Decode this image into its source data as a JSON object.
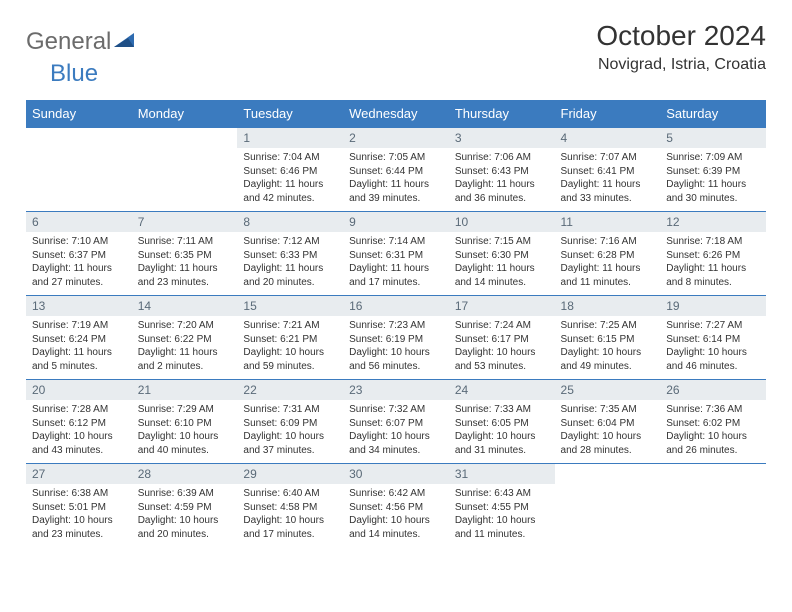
{
  "logo": {
    "word1": "General",
    "word2": "Blue"
  },
  "header": {
    "title": "October 2024",
    "subtitle": "Novigrad, Istria, Croatia"
  },
  "colors": {
    "header_bg": "#3b7bbf",
    "header_text": "#ffffff",
    "daynum_bg": "#e8ecef",
    "daynum_text": "#5a6a78",
    "body_text": "#333333",
    "rule": "#3b7bbf",
    "logo_gray": "#6b6b6b",
    "logo_blue": "#3b7bbf"
  },
  "columns": [
    "Sunday",
    "Monday",
    "Tuesday",
    "Wednesday",
    "Thursday",
    "Friday",
    "Saturday"
  ],
  "weeks": [
    [
      null,
      null,
      {
        "n": "1",
        "sr": "Sunrise: 7:04 AM",
        "ss": "Sunset: 6:46 PM",
        "dl1": "Daylight: 11 hours",
        "dl2": "and 42 minutes."
      },
      {
        "n": "2",
        "sr": "Sunrise: 7:05 AM",
        "ss": "Sunset: 6:44 PM",
        "dl1": "Daylight: 11 hours",
        "dl2": "and 39 minutes."
      },
      {
        "n": "3",
        "sr": "Sunrise: 7:06 AM",
        "ss": "Sunset: 6:43 PM",
        "dl1": "Daylight: 11 hours",
        "dl2": "and 36 minutes."
      },
      {
        "n": "4",
        "sr": "Sunrise: 7:07 AM",
        "ss": "Sunset: 6:41 PM",
        "dl1": "Daylight: 11 hours",
        "dl2": "and 33 minutes."
      },
      {
        "n": "5",
        "sr": "Sunrise: 7:09 AM",
        "ss": "Sunset: 6:39 PM",
        "dl1": "Daylight: 11 hours",
        "dl2": "and 30 minutes."
      }
    ],
    [
      {
        "n": "6",
        "sr": "Sunrise: 7:10 AM",
        "ss": "Sunset: 6:37 PM",
        "dl1": "Daylight: 11 hours",
        "dl2": "and 27 minutes."
      },
      {
        "n": "7",
        "sr": "Sunrise: 7:11 AM",
        "ss": "Sunset: 6:35 PM",
        "dl1": "Daylight: 11 hours",
        "dl2": "and 23 minutes."
      },
      {
        "n": "8",
        "sr": "Sunrise: 7:12 AM",
        "ss": "Sunset: 6:33 PM",
        "dl1": "Daylight: 11 hours",
        "dl2": "and 20 minutes."
      },
      {
        "n": "9",
        "sr": "Sunrise: 7:14 AM",
        "ss": "Sunset: 6:31 PM",
        "dl1": "Daylight: 11 hours",
        "dl2": "and 17 minutes."
      },
      {
        "n": "10",
        "sr": "Sunrise: 7:15 AM",
        "ss": "Sunset: 6:30 PM",
        "dl1": "Daylight: 11 hours",
        "dl2": "and 14 minutes."
      },
      {
        "n": "11",
        "sr": "Sunrise: 7:16 AM",
        "ss": "Sunset: 6:28 PM",
        "dl1": "Daylight: 11 hours",
        "dl2": "and 11 minutes."
      },
      {
        "n": "12",
        "sr": "Sunrise: 7:18 AM",
        "ss": "Sunset: 6:26 PM",
        "dl1": "Daylight: 11 hours",
        "dl2": "and 8 minutes."
      }
    ],
    [
      {
        "n": "13",
        "sr": "Sunrise: 7:19 AM",
        "ss": "Sunset: 6:24 PM",
        "dl1": "Daylight: 11 hours",
        "dl2": "and 5 minutes."
      },
      {
        "n": "14",
        "sr": "Sunrise: 7:20 AM",
        "ss": "Sunset: 6:22 PM",
        "dl1": "Daylight: 11 hours",
        "dl2": "and 2 minutes."
      },
      {
        "n": "15",
        "sr": "Sunrise: 7:21 AM",
        "ss": "Sunset: 6:21 PM",
        "dl1": "Daylight: 10 hours",
        "dl2": "and 59 minutes."
      },
      {
        "n": "16",
        "sr": "Sunrise: 7:23 AM",
        "ss": "Sunset: 6:19 PM",
        "dl1": "Daylight: 10 hours",
        "dl2": "and 56 minutes."
      },
      {
        "n": "17",
        "sr": "Sunrise: 7:24 AM",
        "ss": "Sunset: 6:17 PM",
        "dl1": "Daylight: 10 hours",
        "dl2": "and 53 minutes."
      },
      {
        "n": "18",
        "sr": "Sunrise: 7:25 AM",
        "ss": "Sunset: 6:15 PM",
        "dl1": "Daylight: 10 hours",
        "dl2": "and 49 minutes."
      },
      {
        "n": "19",
        "sr": "Sunrise: 7:27 AM",
        "ss": "Sunset: 6:14 PM",
        "dl1": "Daylight: 10 hours",
        "dl2": "and 46 minutes."
      }
    ],
    [
      {
        "n": "20",
        "sr": "Sunrise: 7:28 AM",
        "ss": "Sunset: 6:12 PM",
        "dl1": "Daylight: 10 hours",
        "dl2": "and 43 minutes."
      },
      {
        "n": "21",
        "sr": "Sunrise: 7:29 AM",
        "ss": "Sunset: 6:10 PM",
        "dl1": "Daylight: 10 hours",
        "dl2": "and 40 minutes."
      },
      {
        "n": "22",
        "sr": "Sunrise: 7:31 AM",
        "ss": "Sunset: 6:09 PM",
        "dl1": "Daylight: 10 hours",
        "dl2": "and 37 minutes."
      },
      {
        "n": "23",
        "sr": "Sunrise: 7:32 AM",
        "ss": "Sunset: 6:07 PM",
        "dl1": "Daylight: 10 hours",
        "dl2": "and 34 minutes."
      },
      {
        "n": "24",
        "sr": "Sunrise: 7:33 AM",
        "ss": "Sunset: 6:05 PM",
        "dl1": "Daylight: 10 hours",
        "dl2": "and 31 minutes."
      },
      {
        "n": "25",
        "sr": "Sunrise: 7:35 AM",
        "ss": "Sunset: 6:04 PM",
        "dl1": "Daylight: 10 hours",
        "dl2": "and 28 minutes."
      },
      {
        "n": "26",
        "sr": "Sunrise: 7:36 AM",
        "ss": "Sunset: 6:02 PM",
        "dl1": "Daylight: 10 hours",
        "dl2": "and 26 minutes."
      }
    ],
    [
      {
        "n": "27",
        "sr": "Sunrise: 6:38 AM",
        "ss": "Sunset: 5:01 PM",
        "dl1": "Daylight: 10 hours",
        "dl2": "and 23 minutes."
      },
      {
        "n": "28",
        "sr": "Sunrise: 6:39 AM",
        "ss": "Sunset: 4:59 PM",
        "dl1": "Daylight: 10 hours",
        "dl2": "and 20 minutes."
      },
      {
        "n": "29",
        "sr": "Sunrise: 6:40 AM",
        "ss": "Sunset: 4:58 PM",
        "dl1": "Daylight: 10 hours",
        "dl2": "and 17 minutes."
      },
      {
        "n": "30",
        "sr": "Sunrise: 6:42 AM",
        "ss": "Sunset: 4:56 PM",
        "dl1": "Daylight: 10 hours",
        "dl2": "and 14 minutes."
      },
      {
        "n": "31",
        "sr": "Sunrise: 6:43 AM",
        "ss": "Sunset: 4:55 PM",
        "dl1": "Daylight: 10 hours",
        "dl2": "and 11 minutes."
      },
      null,
      null
    ]
  ]
}
